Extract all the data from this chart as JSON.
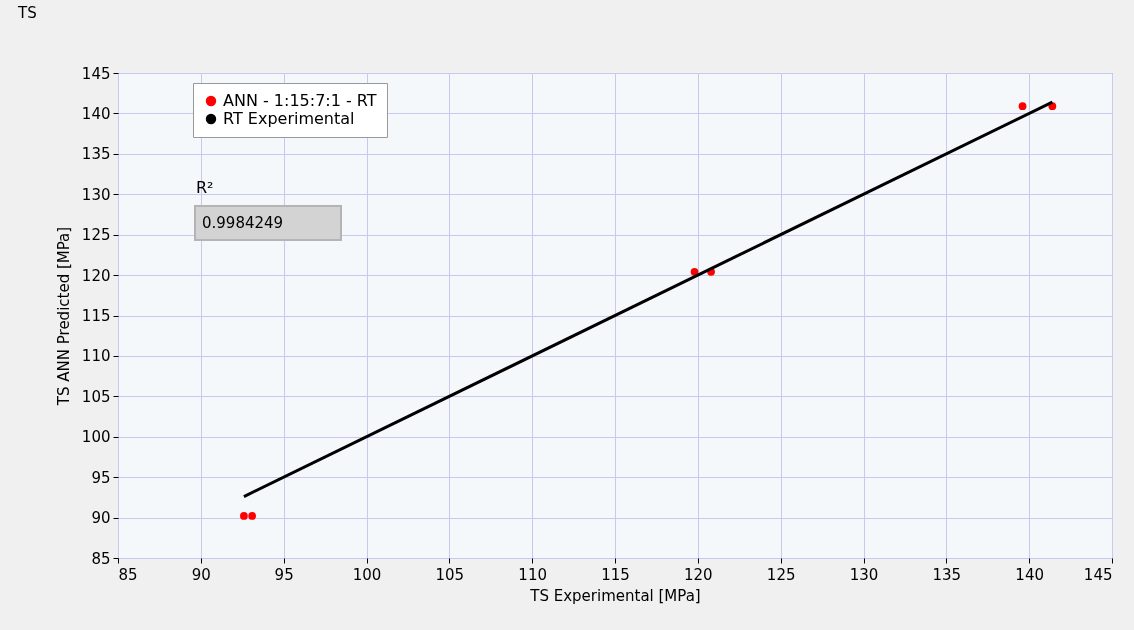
{
  "chart_data": {
    "type": "scatter",
    "title": "TS",
    "xlabel": "TS Experimental  [MPa]",
    "ylabel": "TS ANN Predicted  [MPa]",
    "xlim": [
      85,
      145
    ],
    "ylim": [
      85,
      145
    ],
    "xticks": [
      85,
      90,
      95,
      100,
      105,
      110,
      115,
      120,
      125,
      130,
      135,
      140,
      145
    ],
    "yticks": [
      85,
      90,
      95,
      100,
      105,
      110,
      115,
      120,
      125,
      130,
      135,
      140,
      145
    ],
    "grid": true,
    "legend": "top left",
    "x": [
      92.6,
      93.1,
      119.8,
      120.8,
      139.6,
      141.4
    ],
    "series": [
      {
        "name": "ANN - 1:15:7:1 - RT",
        "color": "#ff0000",
        "marker": "circle",
        "values": [
          90.2,
          90.2,
          120.4,
          120.4,
          140.9,
          140.9
        ]
      },
      {
        "name": "RT Experimental",
        "type": "line",
        "color": "#000000",
        "line_style": "solid",
        "x": [
          92.6,
          141.4
        ],
        "values": [
          92.6,
          141.4
        ]
      }
    ],
    "annotations": [
      "R²",
      "0.9984249"
    ]
  }
}
